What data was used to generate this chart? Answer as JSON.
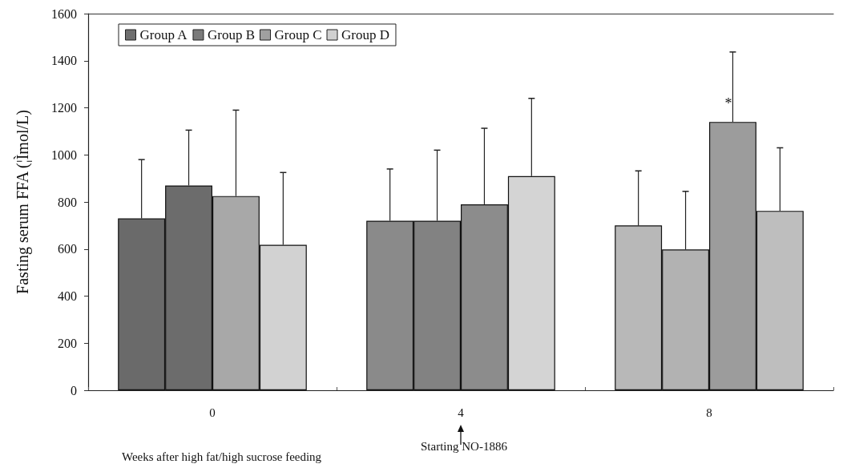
{
  "chart_data": {
    "type": "bar",
    "ylabel": "Fasting serum FFA (¦Ìmol/L)",
    "xlabel": "Weeks after high fat/high sucrose feeding",
    "categories": [
      "0",
      "4",
      "8"
    ],
    "series": [
      {
        "name": "Group A",
        "color": "#6e6e6e",
        "colors": [
          "#6a6a6a",
          "#8a8a8a",
          "#b8b8b8"
        ],
        "values": [
          730,
          720,
          700
        ],
        "errors": [
          [
            730,
            980
          ],
          [
            720,
            940
          ],
          [
            700,
            932
          ]
        ]
      },
      {
        "name": "Group B",
        "color": "#7a7a7a",
        "colors": [
          "#6c6c6c",
          "#828282",
          "#b2b2b2"
        ],
        "values": [
          870,
          720,
          598
        ],
        "errors": [
          [
            870,
            1105
          ],
          [
            720,
            1020
          ],
          [
            598,
            845
          ]
        ]
      },
      {
        "name": "Group C",
        "color": "#a0a0a0",
        "colors": [
          "#a8a8a8",
          "#8c8c8c",
          "#9c9c9c"
        ],
        "values": [
          825,
          790,
          1140
        ],
        "errors": [
          [
            825,
            1190
          ],
          [
            790,
            1113
          ],
          [
            1140,
            1437
          ]
        ]
      },
      {
        "name": "Group D",
        "color": "#d0d0d0",
        "colors": [
          "#d2d2d2",
          "#d4d4d4",
          "#bebebe"
        ],
        "values": [
          618,
          910,
          762
        ],
        "errors": [
          [
            618,
            925
          ],
          [
            910,
            1240
          ],
          [
            762,
            1030
          ]
        ]
      }
    ],
    "ylim": [
      0,
      1600
    ],
    "yticks": [
      0,
      200,
      400,
      600,
      800,
      1000,
      1200,
      1400,
      1600
    ],
    "grid": false,
    "legend": "top left",
    "annotations": [
      {
        "text": "*",
        "x": "8",
        "y": 1150
      },
      "Starting NO-1886"
    ]
  }
}
